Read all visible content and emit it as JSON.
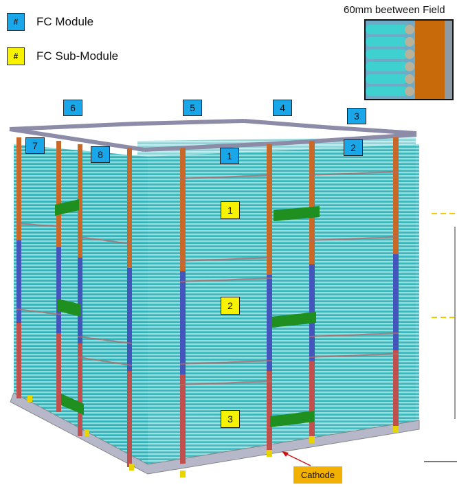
{
  "legend": {
    "module": {
      "symbol": "#",
      "label": "FC Module",
      "color": "#1aa7ea"
    },
    "submodule": {
      "symbol": "#",
      "label": "FC Sub-Module",
      "color": "#f7f200"
    }
  },
  "inset": {
    "title": "60mm beetween Field"
  },
  "modules": [
    "1",
    "2",
    "3",
    "4",
    "5",
    "6",
    "7",
    "8"
  ],
  "submodules": [
    "1",
    "2",
    "3"
  ],
  "cathode_label": "Cathode",
  "colors": {
    "field_cage": "#3ec3c8",
    "frame": "#9a9ab8",
    "beam_orange": "#c8692a",
    "beam_blue": "#4455bb",
    "beam_red": "#c0504d",
    "green_block": "#1f8f1f"
  }
}
